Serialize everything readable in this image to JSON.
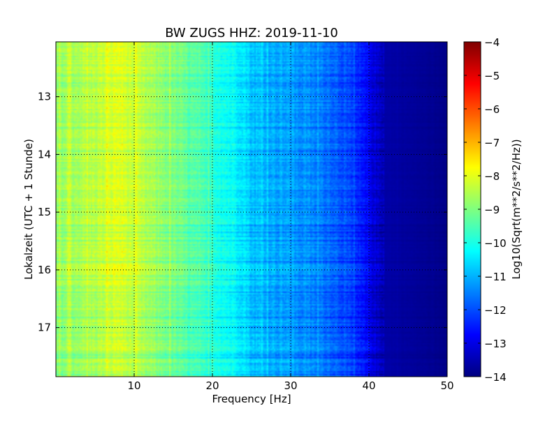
{
  "chart_data": {
    "type": "heatmap",
    "title": "BW ZUGS HHZ: 2019-11-10",
    "xlabel": "Frequency [Hz]",
    "ylabel": "Lokalzeit (UTC + 1 Stunde)",
    "xlim": [
      0,
      50
    ],
    "ylim": [
      12.05,
      17.85
    ],
    "y_axis_inverted": true,
    "xticks": [
      10,
      20,
      30,
      40,
      50
    ],
    "yticks": [
      13,
      14,
      15,
      16,
      17
    ],
    "grid": true,
    "grid_style": "dotted",
    "colormap": "jet",
    "colorbar": {
      "label": "Log10(Sqrt(m**2/s**2/Hz))",
      "range": [
        -14,
        -4
      ],
      "ticks": [
        -4,
        -5,
        -6,
        -7,
        -8,
        -9,
        -10,
        -11,
        -12,
        -13,
        -14
      ]
    },
    "profile": {
      "description": "approximate mean power level by frequency (log10 units)",
      "frequency_hz": [
        0,
        2,
        5,
        8,
        10,
        15,
        20,
        24,
        25,
        30,
        35,
        37,
        40,
        42,
        50
      ],
      "level": [
        -8.8,
        -8.6,
        -8.4,
        -8.0,
        -8.3,
        -9.0,
        -9.8,
        -10.4,
        -10.8,
        -11.2,
        -11.6,
        -12.0,
        -12.8,
        -13.6,
        -13.9
      ]
    },
    "colors": {
      "stops": [
        "#00007f",
        "#0000ff",
        "#007fff",
        "#00ffff",
        "#7fff7f",
        "#ffff00",
        "#ff7f00",
        "#ff0000",
        "#7f0000"
      ]
    }
  }
}
